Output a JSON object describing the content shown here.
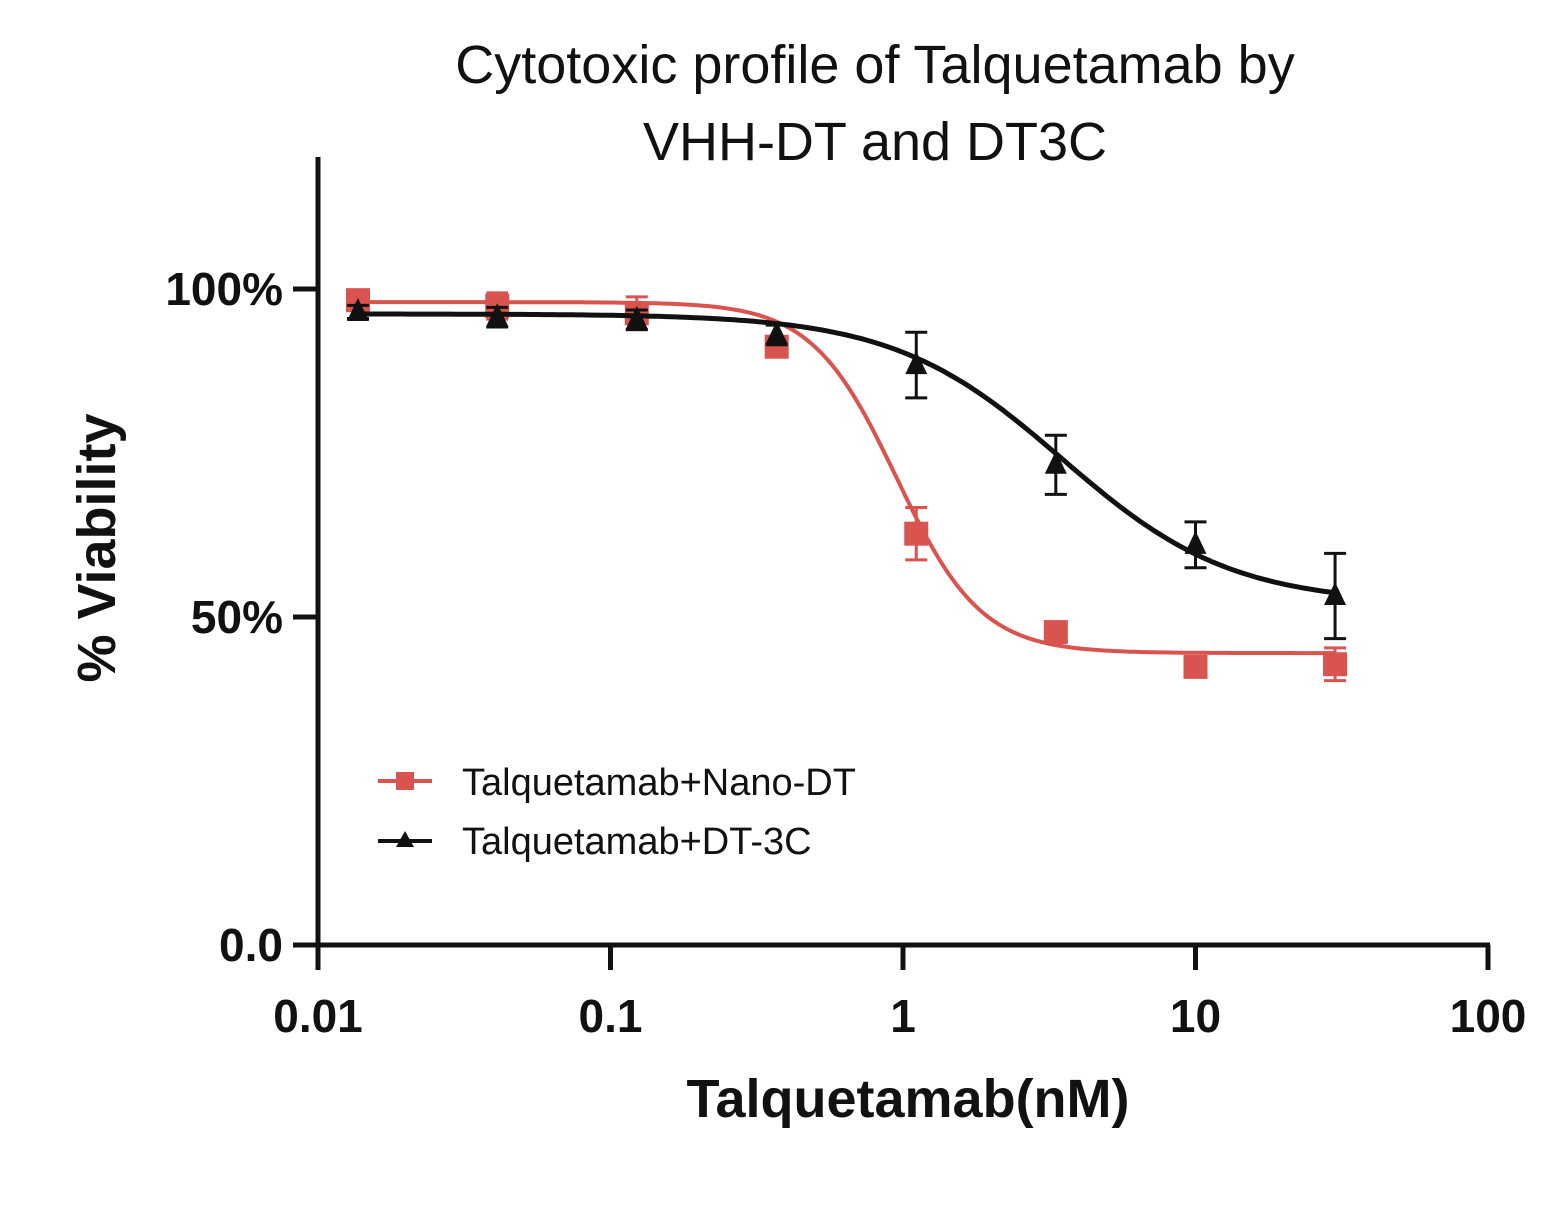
{
  "chart_data": {
    "type": "line",
    "title_lines": [
      "Cytotoxic profile of Talquetamab by",
      "VHH-DT and DT3C"
    ],
    "xlabel": "Talquetamab(nM)",
    "ylabel": "% Viability",
    "x_scale": "log",
    "xlim": [
      0.01,
      100
    ],
    "ylim": [
      0,
      100
    ],
    "x_ticks": [
      {
        "value": 0.01,
        "label": "0.01"
      },
      {
        "value": 0.1,
        "label": "0.1"
      },
      {
        "value": 1,
        "label": "1"
      },
      {
        "value": 10,
        "label": "10"
      },
      {
        "value": 100,
        "label": "100"
      }
    ],
    "y_ticks": [
      {
        "value": 0,
        "label": "0.0"
      },
      {
        "value": 50,
        "label": "50%"
      },
      {
        "value": 100,
        "label": "100%"
      }
    ],
    "grid": false,
    "legend_position": "bottom-left",
    "x": [
      0.0137,
      0.041,
      0.123,
      0.37,
      1.11,
      3.33,
      10,
      30
    ],
    "series": [
      {
        "name": "Talquetamab+Nano-DT",
        "marker": "square",
        "color": "#d9534f",
        "values": [
          98.3,
          97.4,
          96.3,
          91.2,
          62.7,
          47.7,
          42.4,
          42.8
        ],
        "error": [
          1.5,
          2,
          2.5,
          1.5,
          4,
          1,
          1,
          2.5
        ]
      },
      {
        "name": "Talquetamab+DT-3C",
        "marker": "triangle",
        "color": "#111111",
        "values": [
          96.5,
          95.7,
          95.3,
          93.0,
          88.4,
          73.2,
          61.0,
          53.2
        ],
        "error": [
          1,
          1.5,
          1.5,
          1.5,
          5,
          4.5,
          3.5,
          6.5
        ]
      }
    ]
  }
}
